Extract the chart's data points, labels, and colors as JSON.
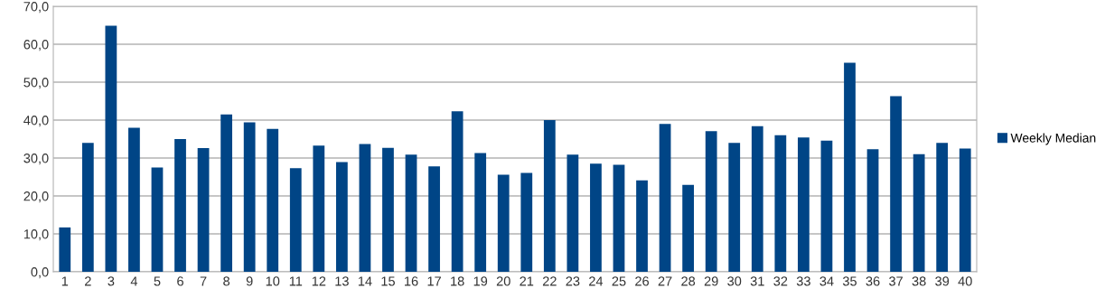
{
  "chart_data": {
    "type": "bar",
    "categories": [
      "1",
      "2",
      "3",
      "4",
      "5",
      "6",
      "7",
      "8",
      "9",
      "10",
      "11",
      "12",
      "13",
      "14",
      "15",
      "16",
      "17",
      "18",
      "19",
      "20",
      "21",
      "22",
      "23",
      "24",
      "25",
      "26",
      "27",
      "28",
      "29",
      "30",
      "31",
      "32",
      "33",
      "34",
      "35",
      "36",
      "37",
      "38",
      "39",
      "40"
    ],
    "series": [
      {
        "name": "Weekly Median",
        "color": "#004586",
        "values": [
          11.7,
          34.0,
          64.9,
          38.0,
          27.5,
          35.0,
          32.6,
          41.5,
          39.4,
          37.7,
          27.3,
          33.3,
          28.9,
          33.7,
          32.7,
          30.9,
          27.8,
          42.3,
          31.3,
          25.6,
          26.1,
          40.0,
          30.9,
          28.5,
          28.2,
          24.1,
          39.0,
          22.9,
          37.1,
          34.0,
          38.4,
          36.0,
          35.4,
          34.6,
          55.1,
          32.3,
          46.3,
          31.0,
          34.0,
          32.5
        ]
      }
    ],
    "ylim": [
      0,
      70
    ],
    "yticks": [
      {
        "value": 0,
        "label": "0,0"
      },
      {
        "value": 10,
        "label": "10,0"
      },
      {
        "value": 20,
        "label": "20,0"
      },
      {
        "value": 30,
        "label": "30,0"
      },
      {
        "value": 40,
        "label": "40,0"
      },
      {
        "value": 50,
        "label": "50,0"
      },
      {
        "value": 60,
        "label": "60,0"
      },
      {
        "value": 70,
        "label": "70,0"
      }
    ],
    "grid": "y",
    "legend": "right"
  }
}
